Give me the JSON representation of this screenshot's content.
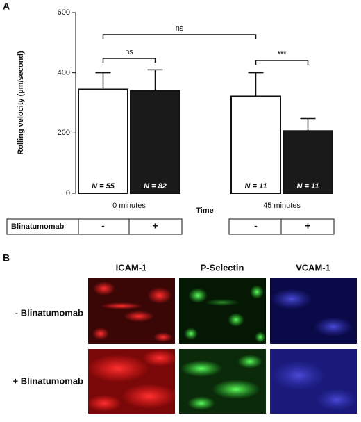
{
  "chart_data": {
    "type": "bar",
    "panel_label": "A",
    "y_label": "Rolling velocity (µm/second)",
    "x_label": "Time",
    "categories": [
      "0 minutes",
      "45 minutes"
    ],
    "ylim": [
      0,
      600
    ],
    "yticks": [
      0,
      200,
      400,
      600
    ],
    "series": [
      {
        "name": "-",
        "color": "#ffffff",
        "values": [
          345,
          322
        ],
        "errors": [
          55,
          78
        ],
        "n_labels": [
          "N = 55",
          "N = 11"
        ]
      },
      {
        "name": "+",
        "color": "#1a1a1a",
        "values": [
          340,
          207
        ],
        "errors": [
          70,
          41
        ],
        "n_labels": [
          "N = 82",
          "N = 11"
        ]
      }
    ],
    "row_label": "Blinatumomab",
    "significance": [
      {
        "text": "ns",
        "between": "0 minutes - vs 45 minutes -"
      },
      {
        "text": "ns",
        "between": "0 minutes - vs +"
      },
      {
        "text": "***",
        "between": "45 minutes - vs +"
      }
    ]
  },
  "images": {
    "panel_label": "B",
    "columns": [
      "ICAM-1",
      "P-Selectin",
      "VCAM-1"
    ],
    "rows": [
      "- Blinatumomab",
      "+ Blinatumomab"
    ]
  }
}
